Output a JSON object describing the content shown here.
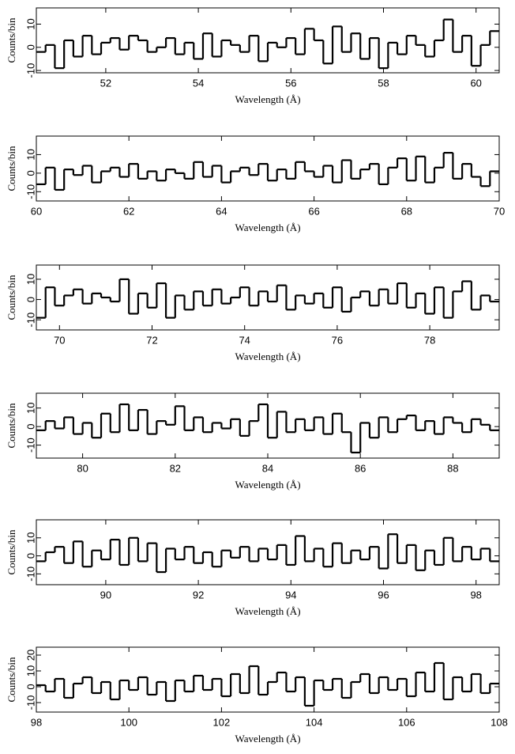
{
  "chart_data": [
    {
      "type": "step",
      "xlabel": "Wavelength (Å)",
      "ylabel": "Counts/bin",
      "xlim": [
        50.5,
        60.5
      ],
      "ylim": [
        -11,
        17
      ],
      "xticks": [
        52,
        54,
        56,
        58,
        60
      ],
      "yticks": [
        -10,
        0,
        10
      ],
      "color": "#000000",
      "x": [
        50.6,
        50.8,
        51,
        51.2,
        51.4,
        51.6,
        51.8,
        52,
        52.2,
        52.4,
        52.6,
        52.8,
        53,
        53.2,
        53.4,
        53.6,
        53.8,
        54,
        54.2,
        54.4,
        54.6,
        54.8,
        55,
        55.2,
        55.4,
        55.6,
        55.8,
        56,
        56.2,
        56.4,
        56.6,
        56.8,
        57,
        57.2,
        57.4,
        57.6,
        57.8,
        58,
        58.2,
        58.4,
        58.6,
        58.8,
        59,
        59.2,
        59.4,
        59.6,
        59.8,
        60,
        60.2,
        60.4
      ],
      "values": [
        -2,
        1,
        -9,
        3,
        -4,
        5,
        -3,
        2,
        4,
        -1,
        5,
        3,
        -2,
        0,
        4,
        -3,
        2,
        -5,
        6,
        -4,
        3,
        1,
        -2,
        5,
        -6,
        2,
        0,
        4,
        -3,
        8,
        3,
        -7,
        9,
        -2,
        6,
        -5,
        4,
        -9,
        2,
        -3,
        5,
        1,
        -4,
        3,
        12,
        -2,
        5,
        -8,
        1,
        7
      ]
    },
    {
      "type": "step",
      "xlabel": "Wavelength (Å)",
      "ylabel": "Counts/bin",
      "xlim": [
        60,
        70
      ],
      "ylim": [
        -15,
        20
      ],
      "xticks": [
        60,
        62,
        64,
        66,
        68,
        70
      ],
      "yticks": [
        -10,
        0,
        10
      ],
      "color": "#000000",
      "x": [
        60.1,
        60.3,
        60.5,
        60.7,
        60.9,
        61.1,
        61.3,
        61.5,
        61.7,
        61.9,
        62.1,
        62.3,
        62.5,
        62.7,
        62.9,
        63.1,
        63.3,
        63.5,
        63.7,
        63.9,
        64.1,
        64.3,
        64.5,
        64.7,
        64.9,
        65.1,
        65.3,
        65.5,
        65.7,
        65.9,
        66.1,
        66.3,
        66.5,
        66.7,
        66.9,
        67.1,
        67.3,
        67.5,
        67.7,
        67.9,
        68.1,
        68.3,
        68.5,
        68.7,
        68.9,
        69.1,
        69.3,
        69.5,
        69.7,
        69.9
      ],
      "values": [
        -6,
        3,
        -9,
        2,
        -1,
        4,
        -5,
        1,
        3,
        -2,
        5,
        -3,
        1,
        -4,
        2,
        0,
        -3,
        6,
        -2,
        4,
        -5,
        1,
        3,
        -1,
        5,
        -4,
        2,
        -3,
        6,
        1,
        -2,
        4,
        -5,
        7,
        -3,
        2,
        5,
        -6,
        3,
        8,
        -4,
        9,
        -5,
        3,
        11,
        -3,
        5,
        -2,
        -7,
        1
      ]
    },
    {
      "type": "step",
      "xlabel": "Wavelength (Å)",
      "ylabel": "Counts/bin",
      "xlim": [
        69.5,
        79.5
      ],
      "ylim": [
        -15,
        17
      ],
      "xticks": [
        70,
        72,
        74,
        76,
        78
      ],
      "yticks": [
        -10,
        0,
        10
      ],
      "color": "#000000",
      "x": [
        69.6,
        69.8,
        70,
        70.2,
        70.4,
        70.6,
        70.8,
        71,
        71.2,
        71.4,
        71.6,
        71.8,
        72,
        72.2,
        72.4,
        72.6,
        72.8,
        73,
        73.2,
        73.4,
        73.6,
        73.8,
        74,
        74.2,
        74.4,
        74.6,
        74.8,
        75,
        75.2,
        75.4,
        75.6,
        75.8,
        76,
        76.2,
        76.4,
        76.6,
        76.8,
        77,
        77.2,
        77.4,
        77.6,
        77.8,
        78,
        78.2,
        78.4,
        78.6,
        78.8,
        79,
        79.2,
        79.4
      ],
      "values": [
        -9,
        6,
        -3,
        2,
        5,
        -2,
        3,
        1,
        -1,
        10,
        -7,
        3,
        -4,
        8,
        -9,
        2,
        -5,
        4,
        -3,
        5,
        -2,
        1,
        6,
        -3,
        4,
        -1,
        7,
        -5,
        2,
        -2,
        3,
        -4,
        6,
        -6,
        1,
        4,
        -3,
        5,
        -2,
        8,
        -4,
        3,
        -7,
        6,
        -9,
        4,
        9,
        -5,
        2,
        -1
      ]
    },
    {
      "type": "step",
      "xlabel": "Wavelength (Å)",
      "ylabel": "Counts/bin",
      "xlim": [
        79,
        89
      ],
      "ylim": [
        -17,
        18
      ],
      "xticks": [
        80,
        82,
        84,
        86,
        88
      ],
      "yticks": [
        -10,
        0,
        10
      ],
      "color": "#000000",
      "x": [
        79.1,
        79.3,
        79.5,
        79.7,
        79.9,
        80.1,
        80.3,
        80.5,
        80.7,
        80.9,
        81.1,
        81.3,
        81.5,
        81.7,
        81.9,
        82.1,
        82.3,
        82.5,
        82.7,
        82.9,
        83.1,
        83.3,
        83.5,
        83.7,
        83.9,
        84.1,
        84.3,
        84.5,
        84.7,
        84.9,
        85.1,
        85.3,
        85.5,
        85.7,
        85.9,
        86.1,
        86.3,
        86.5,
        86.7,
        86.9,
        87.1,
        87.3,
        87.5,
        87.7,
        87.9,
        88.1,
        88.3,
        88.5,
        88.7,
        88.9
      ],
      "values": [
        -2,
        3,
        -1,
        5,
        -4,
        2,
        -6,
        7,
        -3,
        12,
        -2,
        9,
        -4,
        3,
        1,
        11,
        -2,
        5,
        -3,
        2,
        -1,
        4,
        -5,
        3,
        12,
        -6,
        8,
        -3,
        4,
        -2,
        5,
        -4,
        7,
        -3,
        -14,
        2,
        -6,
        5,
        -3,
        4,
        6,
        -2,
        3,
        -4,
        5,
        2,
        -3,
        4,
        1,
        -2
      ]
    },
    {
      "type": "step",
      "xlabel": "Wavelength (Å)",
      "ylabel": "Counts/bin",
      "xlim": [
        88.5,
        98.5
      ],
      "ylim": [
        -16,
        20
      ],
      "xticks": [
        90,
        92,
        94,
        96,
        98
      ],
      "yticks": [
        -10,
        0,
        10
      ],
      "color": "#000000",
      "x": [
        88.6,
        88.8,
        89,
        89.2,
        89.4,
        89.6,
        89.8,
        90,
        90.2,
        90.4,
        90.6,
        90.8,
        91,
        91.2,
        91.4,
        91.6,
        91.8,
        92,
        92.2,
        92.4,
        92.6,
        92.8,
        93,
        93.2,
        93.4,
        93.6,
        93.8,
        94,
        94.2,
        94.4,
        94.6,
        94.8,
        95,
        95.2,
        95.4,
        95.6,
        95.8,
        96,
        96.2,
        96.4,
        96.6,
        96.8,
        97,
        97.2,
        97.4,
        97.6,
        97.8,
        98,
        98.2,
        98.4
      ],
      "values": [
        -3,
        2,
        5,
        -4,
        8,
        -6,
        3,
        -2,
        9,
        -5,
        10,
        -3,
        7,
        -9,
        4,
        -2,
        5,
        -4,
        2,
        -6,
        3,
        -1,
        5,
        -3,
        4,
        -2,
        6,
        -5,
        11,
        -3,
        4,
        -6,
        7,
        -4,
        3,
        -2,
        5,
        -7,
        12,
        -4,
        6,
        -8,
        3,
        -5,
        10,
        -3,
        5,
        -2,
        4,
        -3
      ]
    },
    {
      "type": "step",
      "xlabel": "Wavelength (Å)",
      "ylabel": "Counts/bin",
      "xlim": [
        98,
        108
      ],
      "ylim": [
        -16,
        25
      ],
      "xticks": [
        98,
        100,
        102,
        104,
        106,
        108
      ],
      "yticks": [
        -10,
        0,
        10,
        20
      ],
      "color": "#000000",
      "x": [
        98.1,
        98.3,
        98.5,
        98.7,
        98.9,
        99.1,
        99.3,
        99.5,
        99.7,
        99.9,
        100.1,
        100.3,
        100.5,
        100.7,
        100.9,
        101.1,
        101.3,
        101.5,
        101.7,
        101.9,
        102.1,
        102.3,
        102.5,
        102.7,
        102.9,
        103.1,
        103.3,
        103.5,
        103.7,
        103.9,
        104.1,
        104.3,
        104.5,
        104.7,
        104.9,
        105.1,
        105.3,
        105.5,
        105.7,
        105.9,
        106.1,
        106.3,
        106.5,
        106.7,
        106.9,
        107.1,
        107.3,
        107.5,
        107.7,
        107.9
      ],
      "values": [
        1,
        -3,
        5,
        -7,
        2,
        6,
        -4,
        3,
        -8,
        4,
        -2,
        6,
        -5,
        3,
        -9,
        4,
        -3,
        7,
        -2,
        5,
        -6,
        8,
        -4,
        13,
        -5,
        3,
        9,
        -3,
        6,
        -12,
        4,
        -2,
        5,
        -7,
        3,
        8,
        -4,
        6,
        -2,
        5,
        -6,
        9,
        -3,
        15,
        -8,
        6,
        -3,
        8,
        -4,
        2
      ]
    }
  ]
}
